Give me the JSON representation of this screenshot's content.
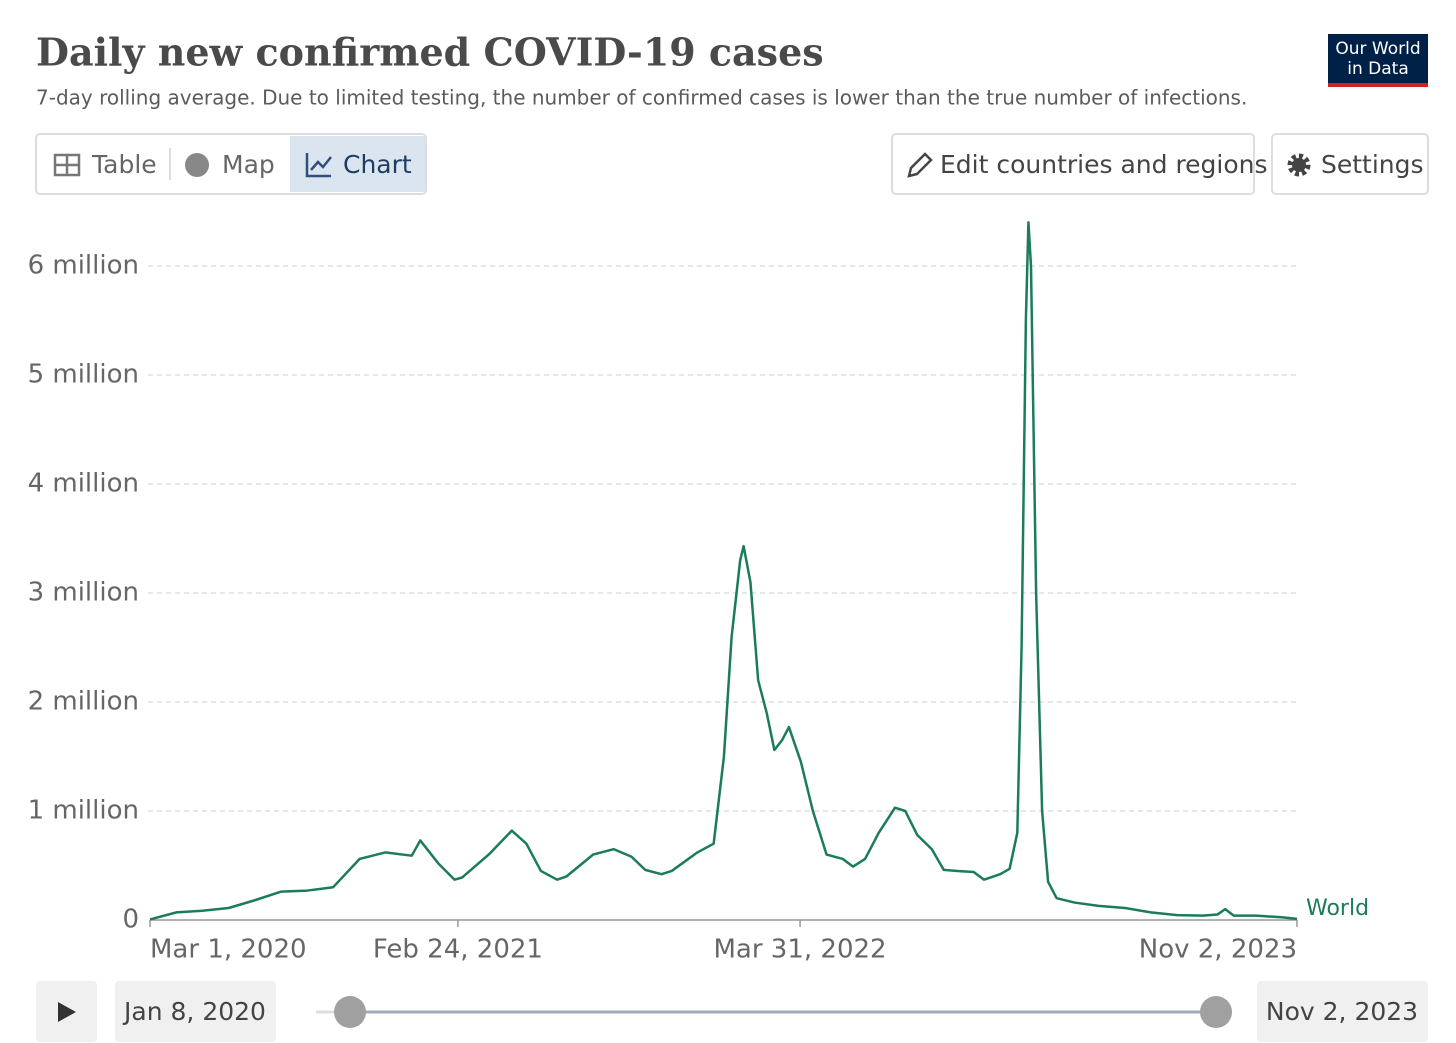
{
  "ui": {
    "logo": [
      "Our World",
      "in Data"
    ],
    "tabs": [
      "Table",
      "Map",
      "Chart"
    ],
    "edit_button": "Edit countries and regions",
    "settings_button": "Settings",
    "timeline_start": "Jan 8, 2020",
    "timeline_end": "Nov 2, 2023"
  },
  "chart_data": {
    "type": "line",
    "title": "Daily new confirmed COVID-19 cases",
    "subtitle": "7-day rolling average. Due to limited testing, the number of confirmed cases is lower than the true number of infections.",
    "x": [
      "2020-03-01",
      "2020-04-01",
      "2020-05-01",
      "2020-06-01",
      "2020-07-01",
      "2020-08-01",
      "2020-09-01",
      "2020-10-01",
      "2020-11-01",
      "2020-12-01",
      "2021-01-01",
      "2021-01-11",
      "2021-02-01",
      "2021-02-20",
      "2021-03-01",
      "2021-04-01",
      "2021-04-28",
      "2021-05-15",
      "2021-06-01",
      "2021-06-20",
      "2021-07-01",
      "2021-08-01",
      "2021-08-25",
      "2021-09-15",
      "2021-10-01",
      "2021-10-20",
      "2021-11-01",
      "2021-12-01",
      "2021-12-20",
      "2022-01-01",
      "2022-01-10",
      "2022-01-20",
      "2022-01-24",
      "2022-02-01",
      "2022-02-10",
      "2022-02-20",
      "2022-03-01",
      "2022-03-10",
      "2022-03-18",
      "2022-04-01",
      "2022-04-15",
      "2022-05-01",
      "2022-05-20",
      "2022-06-01",
      "2022-06-15",
      "2022-07-01",
      "2022-07-20",
      "2022-08-01",
      "2022-08-15",
      "2022-09-01",
      "2022-09-15",
      "2022-10-01",
      "2022-10-20",
      "2022-11-01",
      "2022-11-20",
      "2022-12-01",
      "2022-12-10",
      "2022-12-15",
      "2022-12-20",
      "2022-12-23",
      "2022-12-26",
      "2023-01-01",
      "2023-01-08",
      "2023-01-15",
      "2023-01-25",
      "2023-02-15",
      "2023-03-15",
      "2023-04-15",
      "2023-05-15",
      "2023-06-15",
      "2023-07-15",
      "2023-08-01",
      "2023-08-10",
      "2023-08-20",
      "2023-09-15",
      "2023-10-15",
      "2023-11-02"
    ],
    "series": [
      {
        "name": "World",
        "color": "#1b7c5c",
        "values": [
          5000,
          70000,
          85000,
          110000,
          180000,
          260000,
          270000,
          300000,
          560000,
          620000,
          590000,
          730000,
          520000,
          370000,
          390000,
          600000,
          820000,
          700000,
          450000,
          370000,
          400000,
          600000,
          650000,
          580000,
          460000,
          420000,
          450000,
          620000,
          700000,
          1500000,
          2600000,
          3300000,
          3430000,
          3100000,
          2200000,
          1900000,
          1560000,
          1650000,
          1770000,
          1450000,
          1000000,
          600000,
          560000,
          490000,
          560000,
          800000,
          1030000,
          1000000,
          780000,
          650000,
          460000,
          450000,
          440000,
          370000,
          420000,
          470000,
          800000,
          2500000,
          5500000,
          6400000,
          6000000,
          3000000,
          1000000,
          350000,
          200000,
          160000,
          130000,
          110000,
          70000,
          45000,
          40000,
          50000,
          100000,
          40000,
          40000,
          25000,
          10000
        ]
      }
    ],
    "xlim": [
      "2020-03-01",
      "2023-11-02"
    ],
    "xticks": [
      {
        "value": "2020-03-01",
        "label": "Mar 1, 2020"
      },
      {
        "value": "2021-02-24",
        "label": "Feb 24, 2021"
      },
      {
        "value": "2022-03-31",
        "label": "Mar 31, 2022"
      },
      {
        "value": "2023-11-02",
        "label": "Nov 2, 2023"
      }
    ],
    "ylim": [
      0,
      6400000
    ],
    "yticks": [
      0,
      {
        "value": 1000000,
        "label": "1 million"
      },
      {
        "value": 2000000,
        "label": "2 million"
      },
      {
        "value": 3000000,
        "label": "3 million"
      },
      {
        "value": 4000000,
        "label": "4 million"
      },
      {
        "value": 5000000,
        "label": "5 million"
      },
      {
        "value": 6000000,
        "label": "6 million"
      }
    ],
    "grid": true
  }
}
